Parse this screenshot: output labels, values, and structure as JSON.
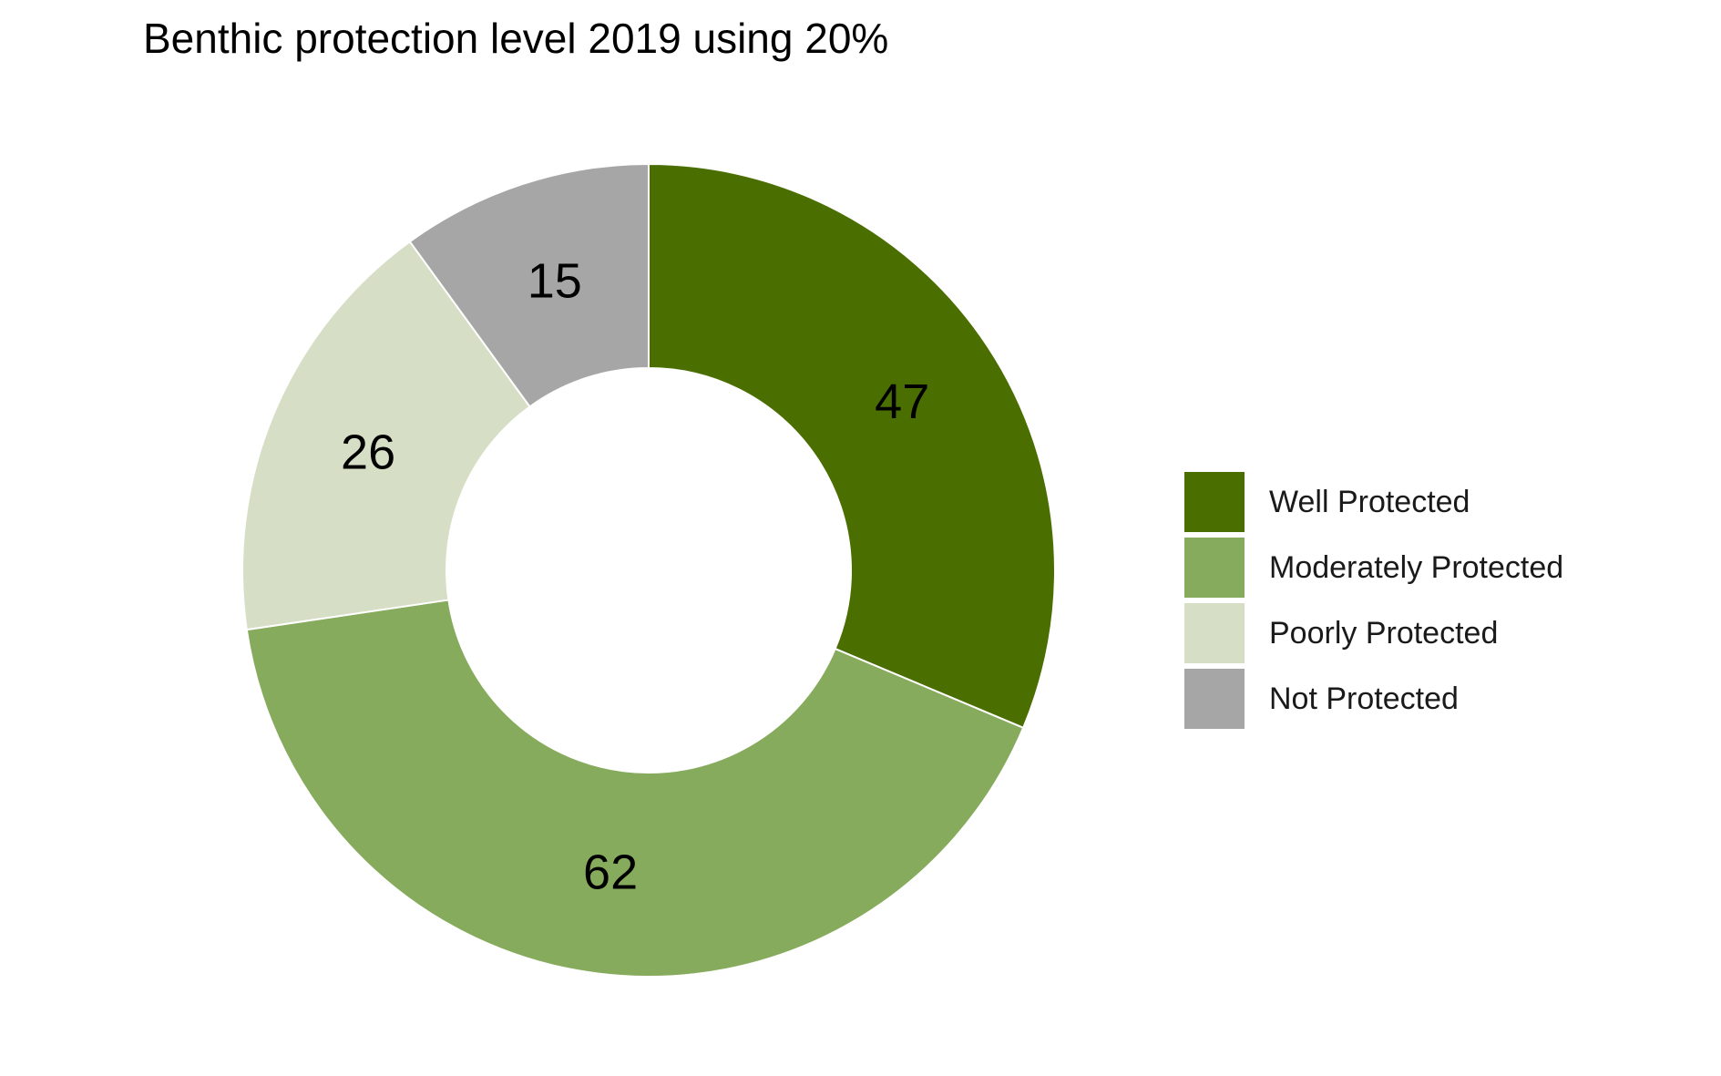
{
  "chart_data": {
    "type": "pie",
    "variant": "donut",
    "title": "Benthic protection level 2019 using 20%",
    "categories": [
      "Well Protected",
      "Moderately Protected",
      "Poorly Protected",
      "Not Protected"
    ],
    "values": [
      47,
      62,
      26,
      15
    ],
    "colors": [
      "#4a6e00",
      "#86ab5d",
      "#d6dfc5",
      "#a6a6a6"
    ],
    "data_labels": [
      "47",
      "62",
      "26",
      "15"
    ],
    "legend_position": "right",
    "start_angle": "12 o'clock",
    "direction": "clockwise"
  }
}
